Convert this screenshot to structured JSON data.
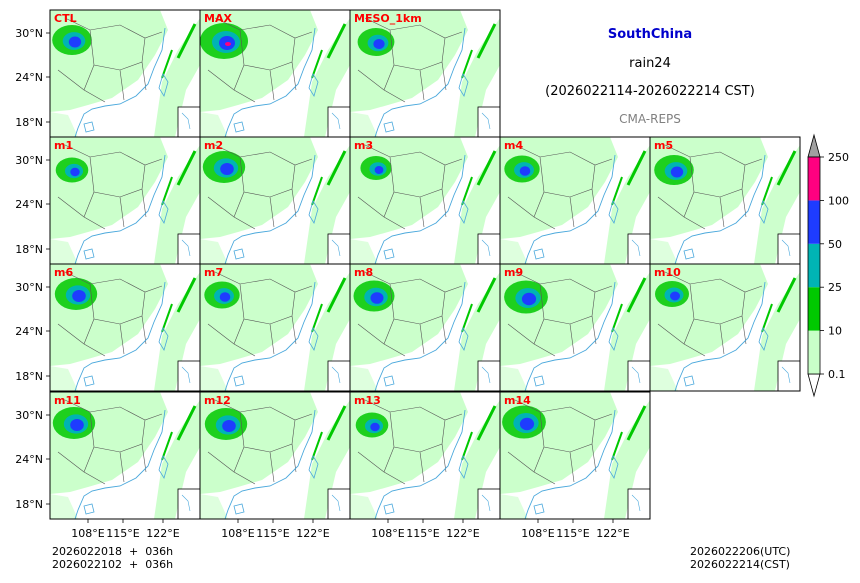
{
  "header": {
    "region": "SouthChina",
    "variable": "rain24",
    "period": "(2026022114-2026022214 CST)",
    "model": "CMA-REPS",
    "region_color": "#0000cc",
    "model_color": "#808080"
  },
  "panel_labels": [
    "CTL",
    "MAX",
    "MESO_1km",
    "m1",
    "m2",
    "m3",
    "m4",
    "m5",
    "m6",
    "m7",
    "m8",
    "m9",
    "m10",
    "m11",
    "m12",
    "m13",
    "m14"
  ],
  "label_color": "#ff0000",
  "axes": {
    "lat_ticks": [
      "30°N",
      "24°N",
      "18°N"
    ],
    "lon_ticks": [
      "108°E",
      "115°E",
      "122°E"
    ]
  },
  "colorbar": {
    "ticks": [
      "0.1",
      "10",
      "25",
      "50",
      "100",
      "250"
    ],
    "colors": [
      "#c8ffc8",
      "#00c800",
      "#00b4b4",
      "#1e3cff",
      "#ff0080"
    ],
    "under_color": "#ffffff",
    "over_color": "#a0a0a0"
  },
  "footer": {
    "init_utc": "2026022018  +  036h",
    "init_cst": "2026022102  +  036h",
    "valid_utc": "2026022206(UTC)",
    "valid_cst": "2026022214(CST)"
  }
}
